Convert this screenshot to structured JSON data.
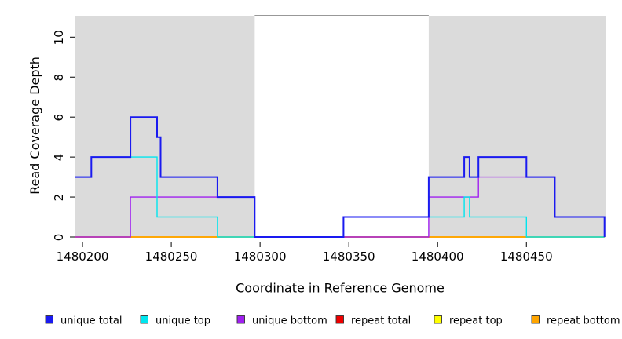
{
  "figure": {
    "background": "#FFFFFF",
    "plot_background": "#FFFFFF",
    "shaded_region_color": "#DBDBDB",
    "axis_color": "#000000"
  },
  "chart_data": {
    "type": "line",
    "subtype": "step-coverage",
    "title": "",
    "xlabel": "Coordinate in Reference Genome",
    "ylabel": "Read Coverage Depth",
    "xlim": [
      1480196,
      1480495
    ],
    "ylim": [
      0,
      11.1
    ],
    "x_ticks": [
      1480200,
      1480250,
      1480300,
      1480350,
      1480400,
      1480450
    ],
    "y_ticks": [
      0,
      2,
      4,
      6,
      8,
      10
    ],
    "grid": false,
    "legend_position": "bottom",
    "y_tick_labels_rotated": true,
    "shaded_regions": [
      {
        "x0": 1480196,
        "x1": 1480297,
        "color": "#DBDBDB"
      },
      {
        "x0": 1480395,
        "x1": 1480495,
        "color": "#DBDBDB"
      }
    ],
    "cap_line": {
      "y": 11,
      "x0": 1480297,
      "x1": 1480395,
      "color": "#777777"
    },
    "series": [
      {
        "name": "unique total",
        "color": "#1A1AF0",
        "points": [
          [
            1480196,
            3
          ],
          [
            1480205,
            4
          ],
          [
            1480227,
            6
          ],
          [
            1480242,
            5
          ],
          [
            1480244,
            3
          ],
          [
            1480276,
            2
          ],
          [
            1480297,
            0
          ],
          [
            1480347,
            1
          ],
          [
            1480395,
            3
          ],
          [
            1480415,
            4
          ],
          [
            1480418,
            3
          ],
          [
            1480423,
            4
          ],
          [
            1480450,
            3
          ],
          [
            1480466,
            1
          ],
          [
            1480494,
            0
          ]
        ]
      },
      {
        "name": "unique top",
        "color": "#00E5EE",
        "points": [
          [
            1480196,
            3
          ],
          [
            1480205,
            4
          ],
          [
            1480242,
            1
          ],
          [
            1480276,
            0
          ],
          [
            1480347,
            1
          ],
          [
            1480415,
            2
          ],
          [
            1480418,
            1
          ],
          [
            1480450,
            0
          ],
          [
            1480494,
            0
          ]
        ]
      },
      {
        "name": "unique bottom",
        "color": "#A020F0",
        "points": [
          [
            1480196,
            0
          ],
          [
            1480227,
            2
          ],
          [
            1480297,
            0
          ],
          [
            1480395,
            2
          ],
          [
            1480423,
            3
          ],
          [
            1480466,
            1
          ],
          [
            1480494,
            0
          ]
        ]
      },
      {
        "name": "repeat total",
        "color": "#EE0000",
        "points": [
          [
            1480196,
            0
          ],
          [
            1480494,
            0
          ]
        ]
      },
      {
        "name": "repeat top",
        "color": "#FFFF00",
        "points": [
          [
            1480196,
            0
          ],
          [
            1480494,
            0
          ]
        ]
      },
      {
        "name": "repeat bottom",
        "color": "#FFA500",
        "points": [
          [
            1480196,
            0
          ],
          [
            1480494,
            0
          ]
        ]
      }
    ]
  }
}
